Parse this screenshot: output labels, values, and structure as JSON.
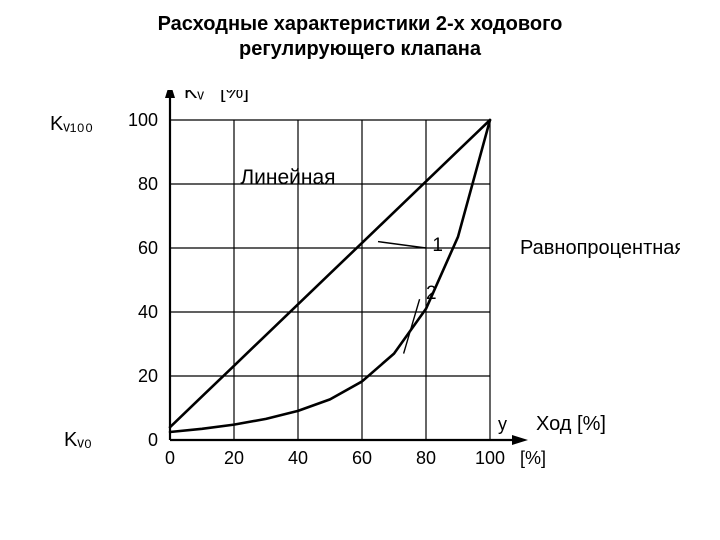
{
  "title_line1": "Расходные характеристики 2-х ходового",
  "title_line2": "регулирующего клапана",
  "title_fontsize": 20,
  "chart": {
    "type": "line",
    "background_color": "#ffffff",
    "axis_color": "#000000",
    "grid_color": "#000000",
    "axis_line_width": 2.2,
    "grid_line_width": 1.2,
    "curve_line_width": 2.6,
    "xlim": [
      0,
      100
    ],
    "ylim": [
      0,
      100
    ],
    "xtick_step": 20,
    "ytick_step": 20,
    "xticks": [
      0,
      20,
      40,
      60,
      80,
      100
    ],
    "yticks": [
      0,
      20,
      40,
      60,
      80,
      100
    ],
    "tick_fontsize": 18,
    "y_axis_top_label": "Kᵥ",
    "y_axis_unit_label": "[%]",
    "x_axis_unit_label": "[%]",
    "x_axis_small_label": "y",
    "axis_label_fontsize": 20,
    "outer_label_left_top": "Kᵥ₁₀₀",
    "outer_label_left_bottom": "Kᵥ₀",
    "outer_label_right_top": "Равнопроцентная",
    "outer_label_right_bottom": "Ход [%]",
    "outer_label_fontsize": 20,
    "label_linear": "Линейная",
    "curve_label_1": "1",
    "curve_label_2": "2",
    "curve_label_fontsize": 19,
    "series": [
      {
        "name": "linear",
        "color": "#000000",
        "points": [
          [
            0,
            4
          ],
          [
            10,
            13.6
          ],
          [
            20,
            23.2
          ],
          [
            30,
            32.8
          ],
          [
            40,
            42.4
          ],
          [
            50,
            52
          ],
          [
            60,
            61.6
          ],
          [
            70,
            71.2
          ],
          [
            80,
            80.8
          ],
          [
            90,
            90.4
          ],
          [
            100,
            100
          ]
        ]
      },
      {
        "name": "equal_percentage",
        "color": "#000000",
        "points": [
          [
            0,
            2.5
          ],
          [
            10,
            3.5
          ],
          [
            20,
            4.8
          ],
          [
            30,
            6.6
          ],
          [
            40,
            9.1
          ],
          [
            50,
            12.7
          ],
          [
            60,
            18.3
          ],
          [
            70,
            27.0
          ],
          [
            80,
            41.0
          ],
          [
            90,
            63.5
          ],
          [
            100,
            100
          ]
        ]
      }
    ],
    "leader_lines": [
      {
        "from": [
          65,
          62
        ],
        "to": [
          80,
          60
        ]
      },
      {
        "from": [
          73,
          27
        ],
        "to": [
          78,
          44
        ]
      }
    ]
  }
}
